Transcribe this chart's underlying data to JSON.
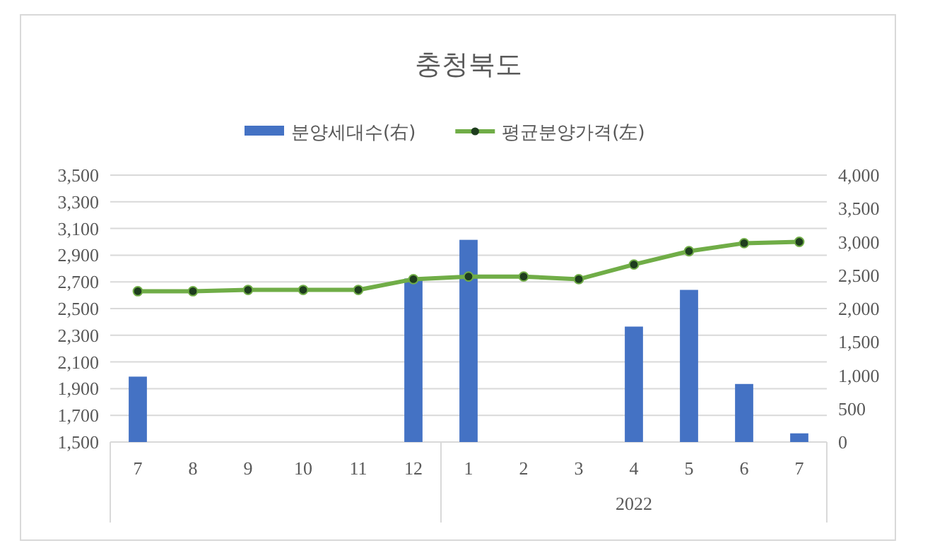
{
  "chart_data": {
    "type": "bar",
    "title": "충청북도",
    "categories": [
      "7",
      "8",
      "9",
      "10",
      "11",
      "12",
      "1",
      "2",
      "3",
      "4",
      "5",
      "6",
      "7"
    ],
    "series": [
      {
        "name": "분양세대수(右)",
        "axis": "y2",
        "color": "#4472c4",
        "values": [
          980,
          null,
          null,
          null,
          null,
          2450,
          3030,
          null,
          null,
          1730,
          2280,
          870,
          130
        ]
      },
      {
        "name": "평균분양가격(左)",
        "type": "line",
        "axis": "y",
        "color": "#70ad47",
        "marker": "circle",
        "values": [
          2630,
          2630,
          2640,
          2640,
          2640,
          2720,
          2740,
          2740,
          2720,
          2830,
          2930,
          2990,
          3000
        ]
      }
    ],
    "ylim": [
      1500,
      3500
    ],
    "yticks": [
      {
        "value": 1500,
        "label": "1,500"
      },
      {
        "value": 1700,
        "label": "1,700"
      },
      {
        "value": 1900,
        "label": "1,900"
      },
      {
        "value": 2100,
        "label": "2,100"
      },
      {
        "value": 2300,
        "label": "2,300"
      },
      {
        "value": 2500,
        "label": "2,500"
      },
      {
        "value": 2700,
        "label": "2,700"
      },
      {
        "value": 2900,
        "label": "2,900"
      },
      {
        "value": 3100,
        "label": "3,100"
      },
      {
        "value": 3300,
        "label": "3,300"
      },
      {
        "value": 3500,
        "label": "3,500"
      }
    ],
    "y2lim": [
      0,
      4000
    ],
    "y2ticks": [
      0,
      {
        "value": 500,
        "label": "500"
      },
      {
        "value": 1000,
        "label": "1,000"
      },
      {
        "value": 1500,
        "label": "1,500"
      },
      {
        "value": 2000,
        "label": "2,000"
      },
      {
        "value": 2500,
        "label": "2,500"
      },
      {
        "value": 3000,
        "label": "3,000"
      },
      {
        "value": 3500,
        "label": "3,500"
      },
      {
        "value": 4000,
        "label": "4,000"
      }
    ],
    "annotations": [
      "2022"
    ],
    "grid": "y",
    "legend": "top"
  }
}
